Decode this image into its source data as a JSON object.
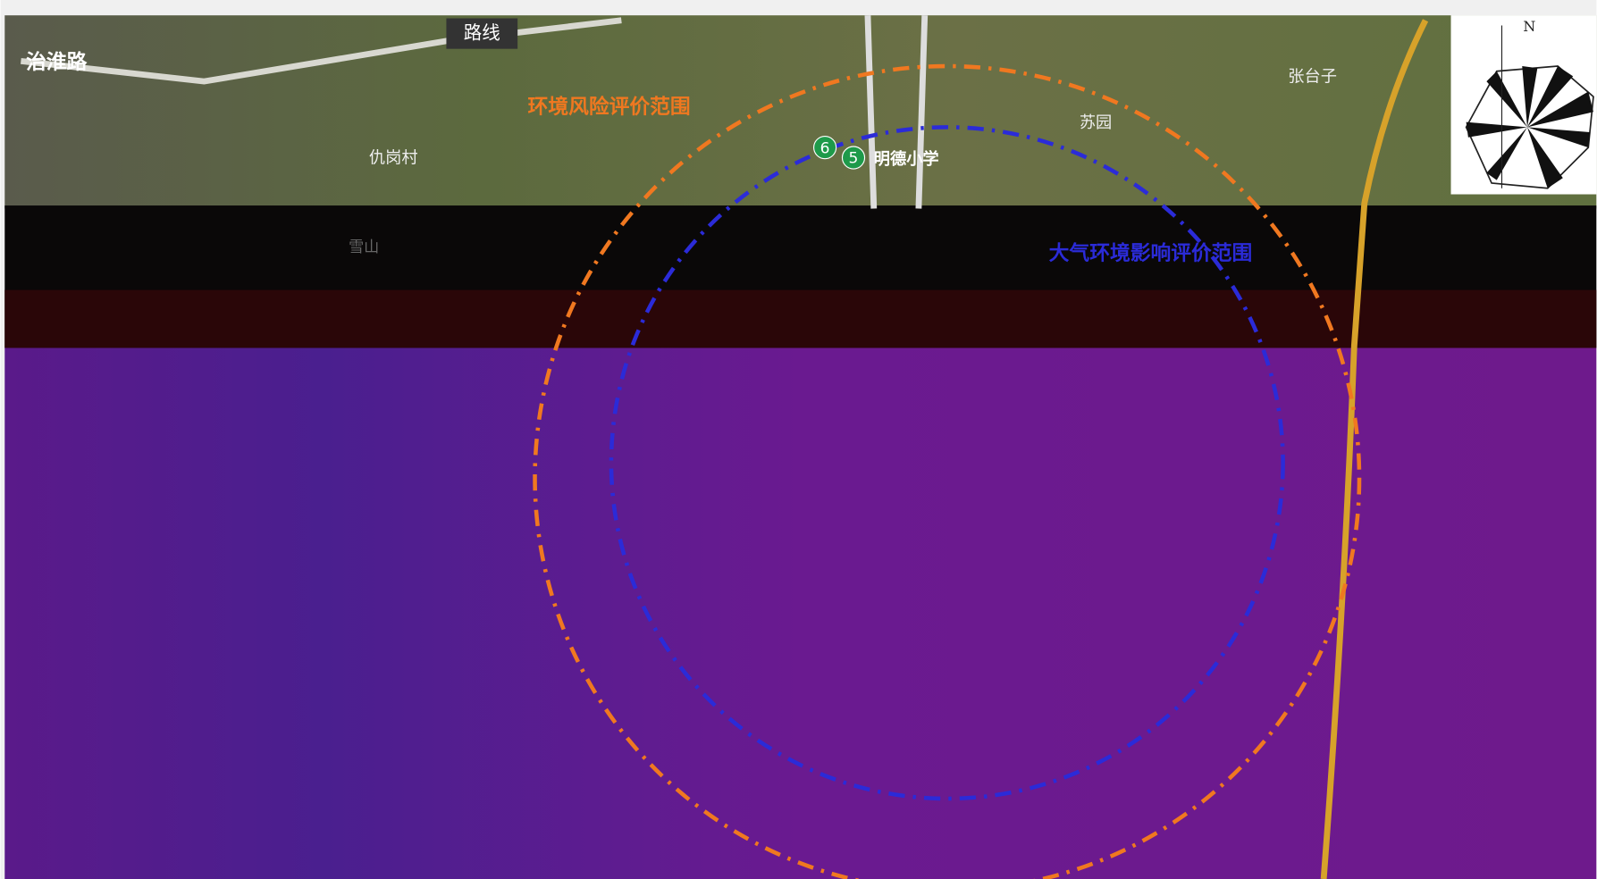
{
  "map": {
    "labels": {
      "road_huaihe": "治淮路",
      "route": "路线",
      "risk_range": "环境风险评价范围",
      "qiugang": "仇岗村",
      "mingde": "明德小学",
      "suyuan": "苏园",
      "zhangtaizi": "张台子",
      "xueshan": "雪山",
      "air_range": "大气环境影响评价范围"
    },
    "markers": [
      "6",
      "5"
    ],
    "compass": "N"
  }
}
